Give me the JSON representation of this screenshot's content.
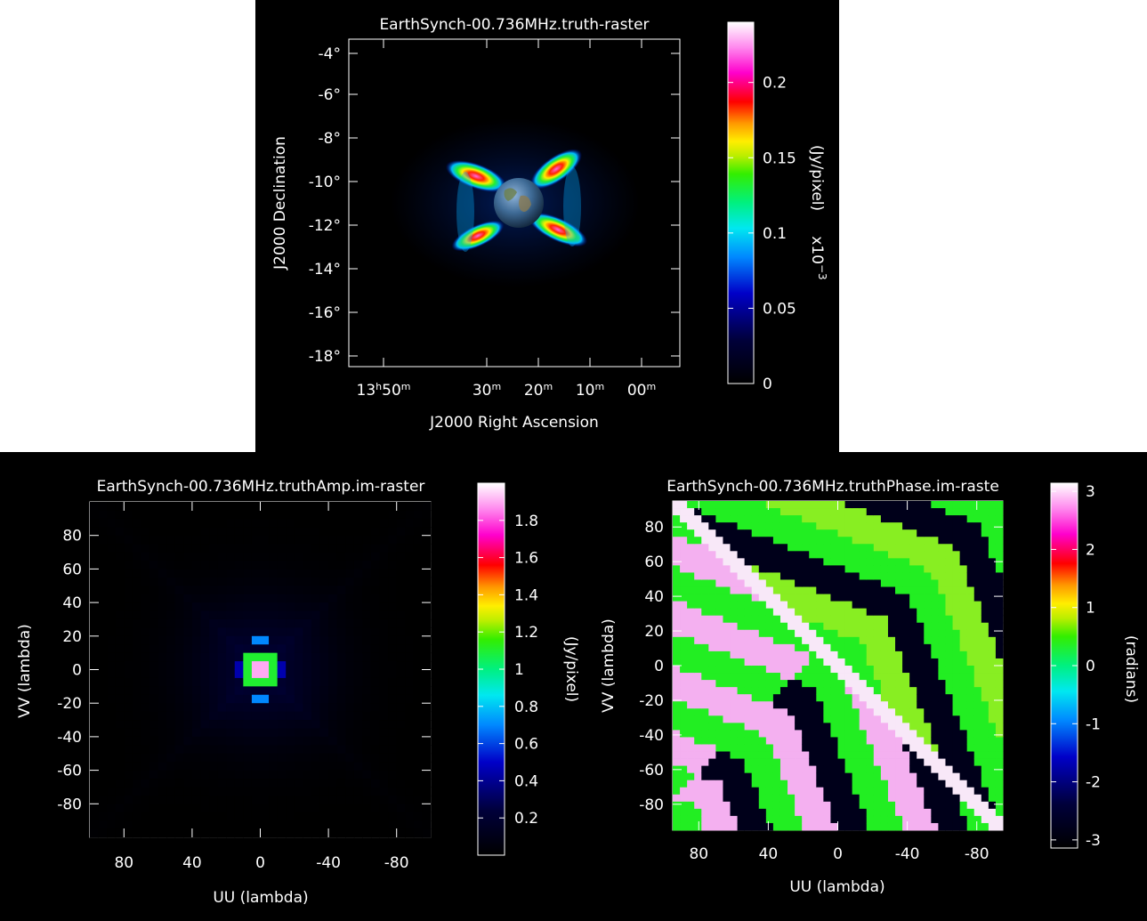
{
  "chart_data": [
    {
      "type": "heatmap",
      "title": "EarthSynch-00.736MHz.truth-raster",
      "xlabel": "J2000 Right Ascension",
      "ylabel": "J2000 Declination",
      "x_ticks": [
        "13h50m",
        "30m",
        "20m",
        "10m",
        "00m"
      ],
      "y_ticks": [
        "-4°",
        "-6°",
        "-8°",
        "-10°",
        "-12°",
        "-14°",
        "-16°",
        "-18°"
      ],
      "colorbar": {
        "label": "(Jy/pixel)",
        "multiplier": "x10^-3",
        "range": [
          0,
          0.24
        ],
        "ticks": [
          "0",
          "0.05",
          "0.1",
          "0.15",
          "0.2"
        ]
      },
      "content": "Earth image at centre with four synchrotron emission lobes"
    },
    {
      "type": "heatmap",
      "title": "EarthSynch-00.736MHz.truthAmp.im-raster",
      "xlabel": "UU (lambda)",
      "ylabel": "VV (lambda)",
      "xlim": [
        100,
        -100
      ],
      "ylim": [
        -100,
        100
      ],
      "x_ticks": [
        "80",
        "40",
        "0",
        "-40",
        "-80"
      ],
      "y_ticks": [
        "80",
        "60",
        "40",
        "20",
        "0",
        "-20",
        "-40",
        "-60",
        "-80"
      ],
      "colorbar": {
        "label": "(Jy/pixel)",
        "range": [
          0,
          2.0
        ],
        "ticks": [
          "0.2",
          "0.4",
          "0.6",
          "0.8",
          "1",
          "1.2",
          "1.4",
          "1.6",
          "1.8"
        ]
      },
      "peak": {
        "u": 0,
        "v": 0,
        "value": 1.9
      }
    },
    {
      "type": "heatmap",
      "title": "EarthSynch-00.736MHz.truthPhase.im-raste",
      "xlabel": "UU (lambda)",
      "ylabel": "VV (lambda)",
      "xlim": [
        95,
        -95
      ],
      "ylim": [
        -95,
        95
      ],
      "x_ticks": [
        "80",
        "40",
        "0",
        "-40",
        "-80"
      ],
      "y_ticks": [
        "80",
        "60",
        "40",
        "20",
        "0",
        "-20",
        "-40",
        "-60",
        "-80"
      ],
      "colorbar": {
        "label": "(radians)",
        "range": [
          -3.14,
          3.14
        ],
        "ticks": [
          "3",
          "2",
          "1",
          "0",
          "-1",
          "-2",
          "-3"
        ]
      }
    }
  ]
}
